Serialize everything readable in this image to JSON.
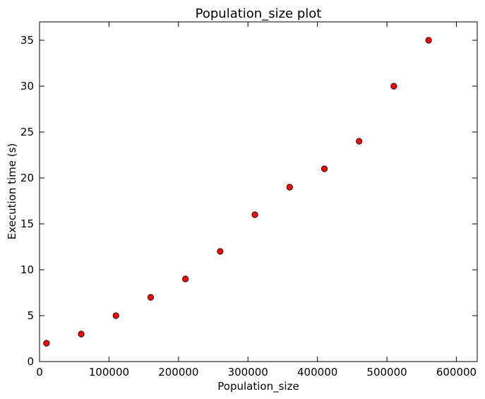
{
  "chart_data": {
    "type": "scatter",
    "title": "Population_size plot",
    "xlabel": "Population_size",
    "ylabel": "Execution time (s)",
    "xlim": [
      0,
      630000
    ],
    "ylim": [
      0,
      37
    ],
    "xticks": [
      0,
      100000,
      200000,
      300000,
      400000,
      500000,
      600000
    ],
    "xtick_labels": [
      "0",
      "100000",
      "200000",
      "300000",
      "400000",
      "500000",
      "600000"
    ],
    "yticks": [
      0,
      5,
      10,
      15,
      20,
      25,
      30,
      35
    ],
    "ytick_labels": [
      "0",
      "5",
      "10",
      "15",
      "20",
      "25",
      "30",
      "35"
    ],
    "grid": false,
    "series": [
      {
        "marker_color": "#ff0000",
        "x": [
          10000,
          60000,
          110000,
          160000,
          210000,
          260000,
          310000,
          360000,
          410000,
          460000,
          510000,
          560000
        ],
        "y": [
          2,
          3,
          5,
          7,
          9,
          12,
          16,
          19,
          21,
          24,
          30,
          35
        ]
      }
    ]
  }
}
